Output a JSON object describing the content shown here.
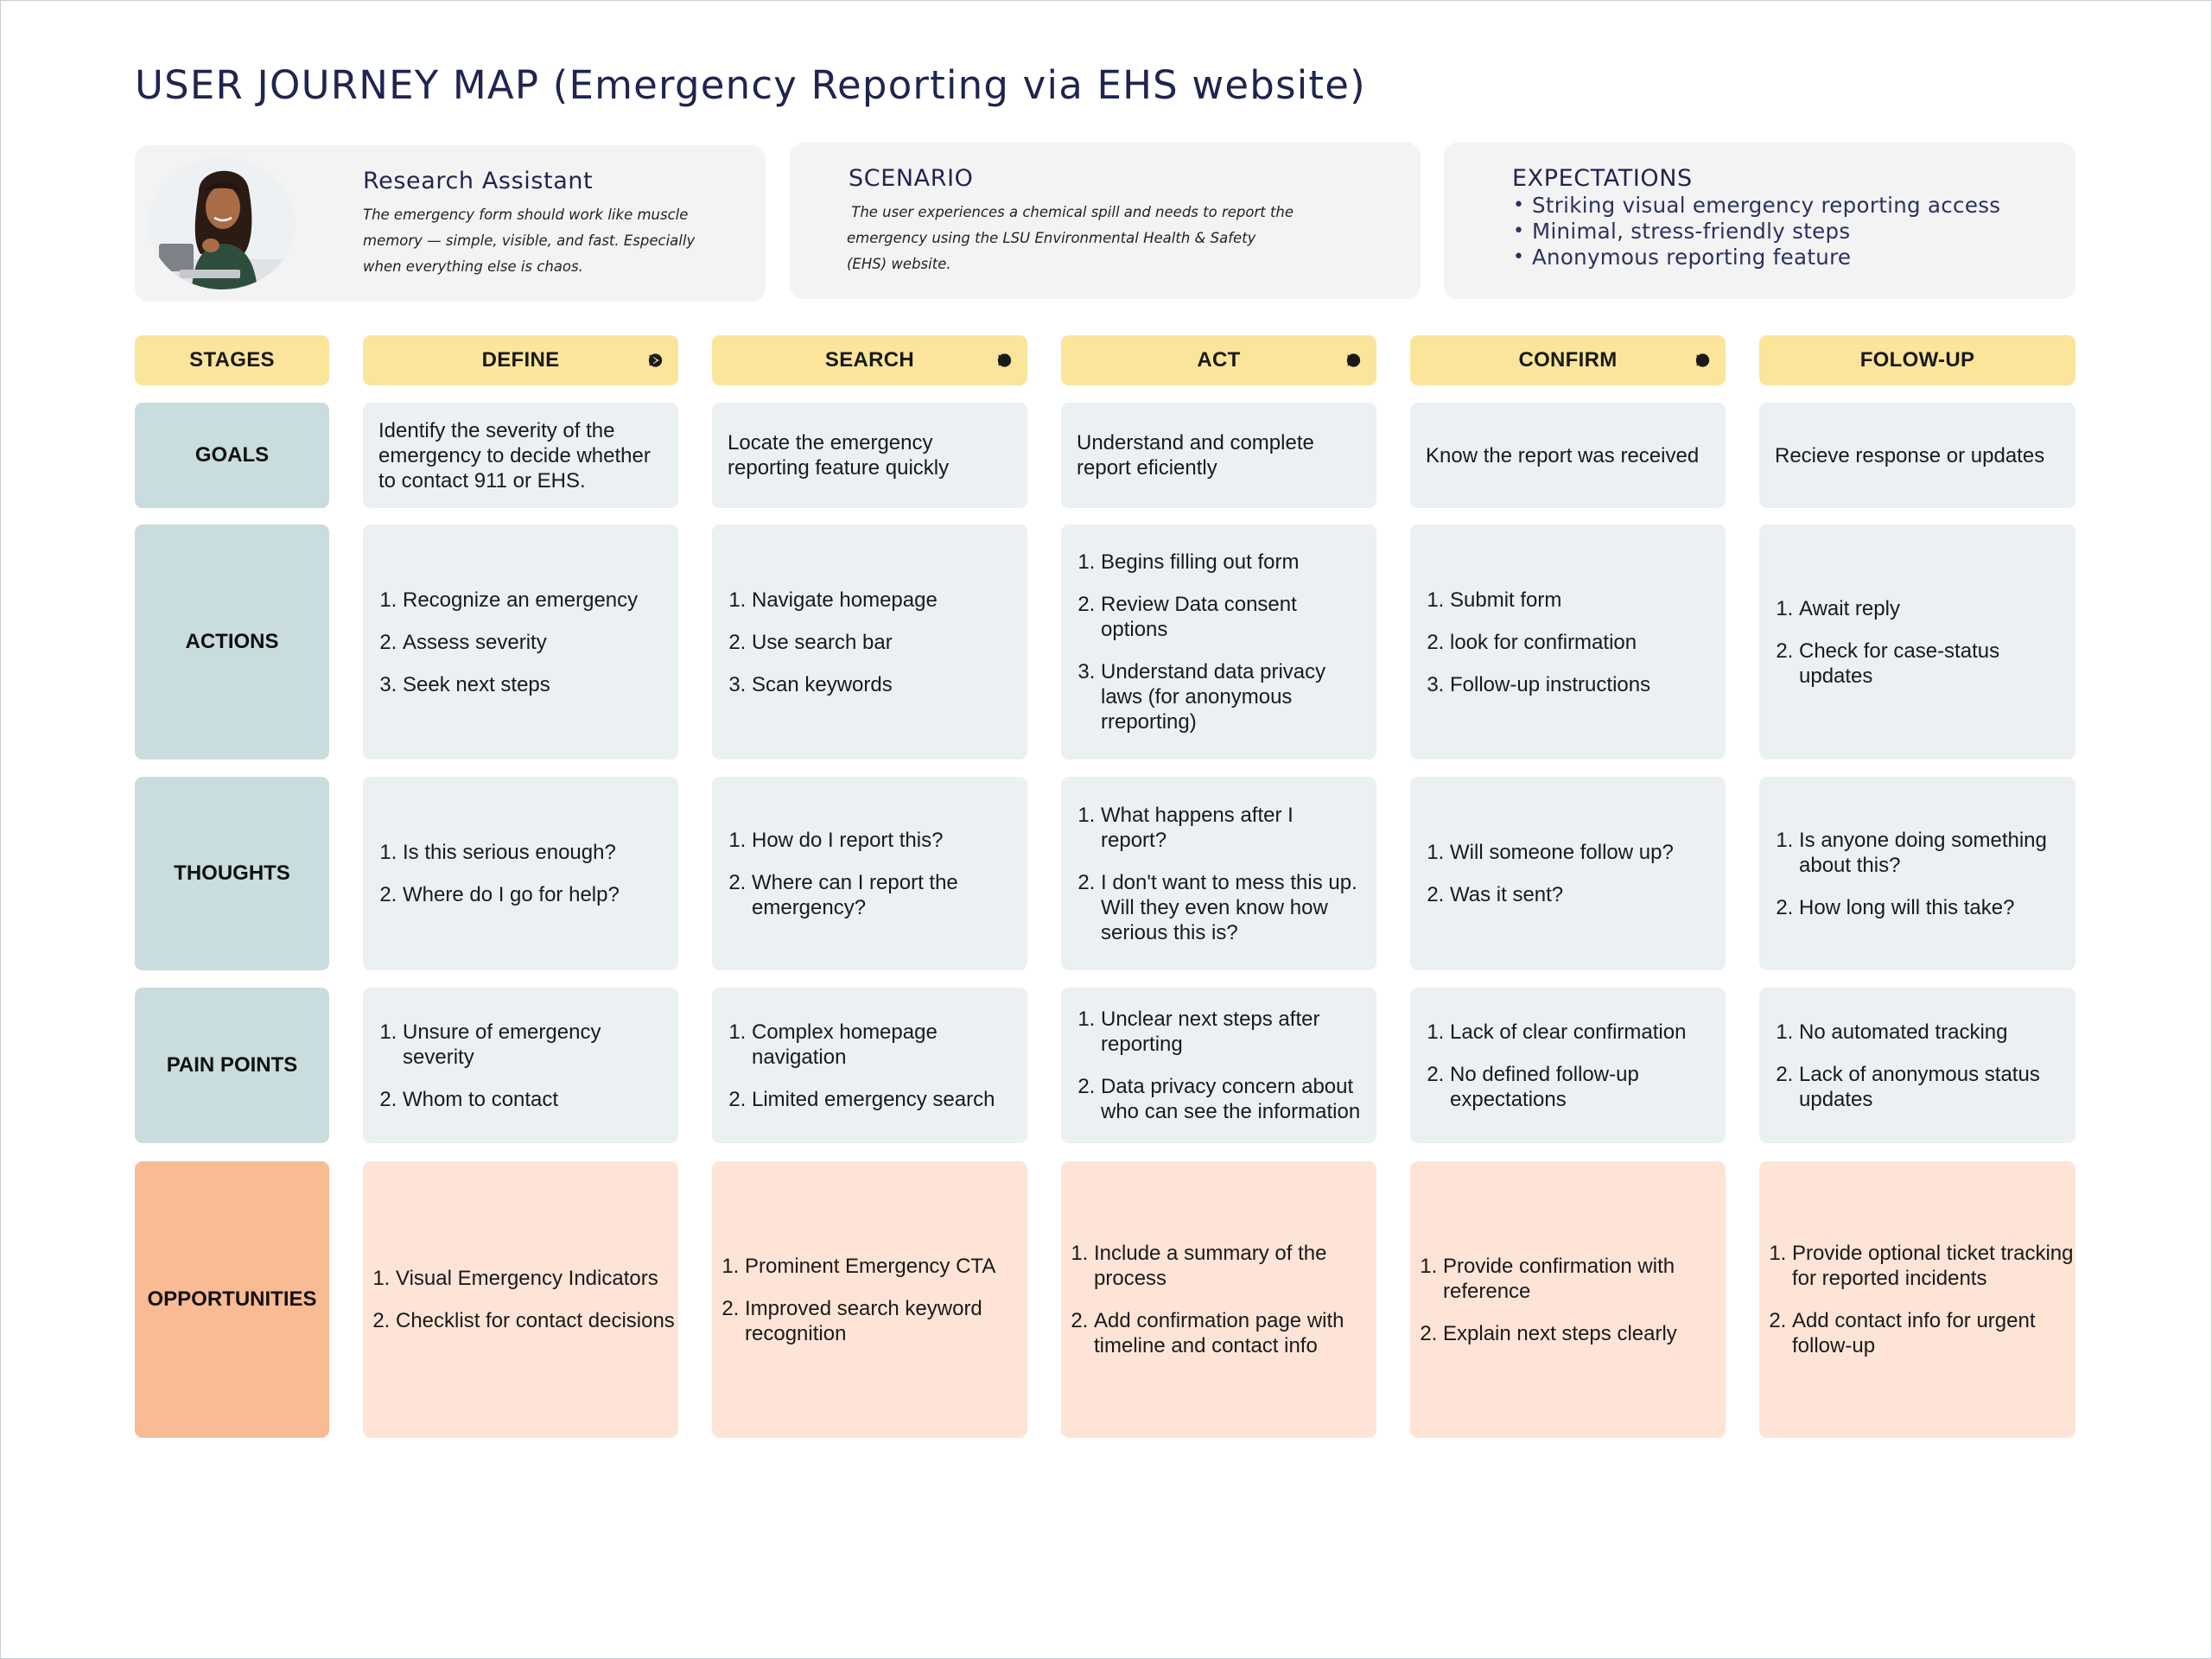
{
  "title": "USER JOURNEY MAP (Emergency Reporting via EHS website)",
  "persona": {
    "name": "Research Assistant",
    "quote": "The emergency form should work like muscle memory — simple, visible, and fast. Especially when everything else is chaos."
  },
  "scenario": {
    "heading": "SCENARIO",
    "text": " The user experiences a chemical spill and needs to report the emergency using the LSU Environmental Health & Safety (EHS) website."
  },
  "expectations": {
    "heading": "EXPECTATIONS",
    "items": [
      "Striking visual emergency reporting access",
      "Minimal, stress-friendly steps",
      "Anonymous reporting feature"
    ]
  },
  "stages": {
    "label": "STAGES",
    "columns": [
      "DEFINE",
      "SEARCH",
      "ACT",
      "CONFIRM",
      "FOLOW-UP"
    ]
  },
  "rows": {
    "goals": {
      "label": "GOALS",
      "cells": [
        "Identify the severity of the emergency to decide whether to contact 911 or EHS.",
        "Locate the emergency reporting feature quickly",
        "Understand and complete report eficiently",
        "Know the report was received",
        "Recieve response or updates"
      ]
    },
    "actions": {
      "label": "ACTIONS",
      "cells": [
        [
          "Recognize an emergency",
          "Assess severity",
          "Seek next steps"
        ],
        [
          "Navigate homepage",
          "Use search bar",
          "Scan keywords"
        ],
        [
          " Begins filling out form",
          "Review Data consent options",
          "Understand data privacy laws (for anonymous rreporting)"
        ],
        [
          "Submit form",
          "look for confirmation",
          "Follow-up instructions"
        ],
        [
          "Await reply",
          "Check for case-status updates"
        ]
      ]
    },
    "thoughts": {
      "label": "THOUGHTS",
      "cells": [
        [
          "Is this serious enough?",
          "Where do I go for help?"
        ],
        [
          "How do I report this?",
          "Where can I report the emergency?"
        ],
        [
          "What happens after I report?",
          "I don't want to mess this up. Will they even know how serious this is?"
        ],
        [
          "Will someone follow up?",
          "Was it sent?"
        ],
        [
          "Is anyone doing something about this?",
          "How long will this take?"
        ]
      ]
    },
    "pain_points": {
      "label": "PAIN POINTS",
      "cells": [
        [
          "Unsure of emergency severity",
          "Whom to contact"
        ],
        [
          "Complex homepage navigation",
          "Limited emergency search"
        ],
        [
          "Unclear next steps after reporting",
          "Data privacy concern about who can see the information"
        ],
        [
          "Lack of clear confirmation",
          "No defined follow-up expectations"
        ],
        [
          "No automated tracking",
          "Lack of anonymous status updates"
        ]
      ]
    },
    "opportunities": {
      "label": "OPPORTUNITIES",
      "cells": [
        [
          "Visual Emergency Indicators",
          "Checklist for contact decisions"
        ],
        [
          "Prominent Emergency CTA",
          " Improved search keyword recognition"
        ],
        [
          "Include a summary of the process",
          "Add confirmation page with timeline and contact info"
        ],
        [
          "Provide confirmation with reference",
          "Explain next steps clearly"
        ],
        [
          "Provide optional ticket tracking for reported incidents",
          "Add contact info for urgent follow-up"
        ]
      ]
    }
  },
  "icons": {
    "stage_arrow": "play-arrow-icon",
    "persona": "persona-avatar"
  },
  "colors": {
    "stage_header": "#fbe59b",
    "row_label": "#c9dcde",
    "cell": "#ebf0f2",
    "opportunity_label": "#f9bb93",
    "opportunity_cell": "#fde4d6",
    "title": "#1f2450"
  }
}
